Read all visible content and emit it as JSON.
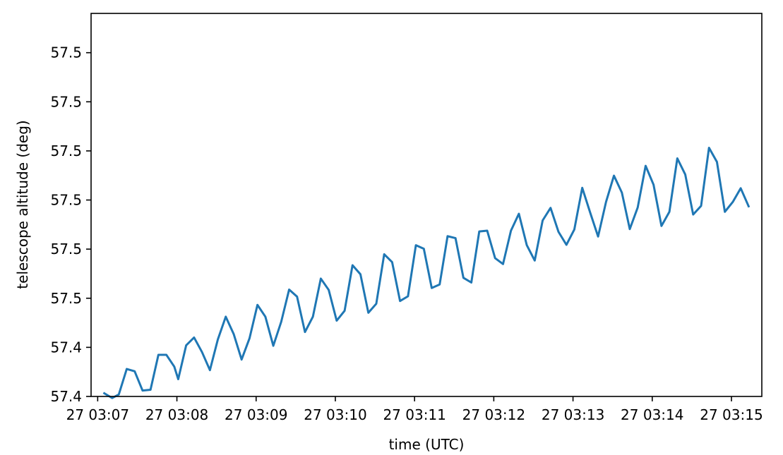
{
  "chart_data": {
    "type": "line",
    "title": "",
    "xlabel": "time (UTC)",
    "ylabel": "telescope altitude (deg)",
    "grid": false,
    "legend": "none",
    "line_color": "#1f77b4",
    "x_tick_labels": [
      "27 03:07",
      "27 03:08",
      "27 03:09",
      "27 03:10",
      "27 03:11",
      "27 03:12",
      "27 03:13",
      "27 03:14",
      "27 03:15"
    ],
    "y_tick_labels": [
      "57.4",
      "57.4",
      "57.5",
      "57.5",
      "57.5",
      "57.5",
      "57.5",
      "57.5"
    ],
    "xlim": [
      "2024-01-27T03:06:55",
      "2024-01-27T03:15:23"
    ],
    "ylim": [
      57.39,
      57.4875
    ],
    "x": [
      "2024-01-27T03:07:05",
      "2024-01-27T03:07:11",
      "2024-01-27T03:07:16",
      "2024-01-27T03:07:22",
      "2024-01-27T03:07:28",
      "2024-01-27T03:07:34",
      "2024-01-27T03:07:40",
      "2024-01-27T03:07:46",
      "2024-01-27T03:07:52",
      "2024-01-27T03:07:58",
      "2024-01-27T03:08:01",
      "2024-01-27T03:08:07",
      "2024-01-27T03:08:13",
      "2024-01-27T03:08:19",
      "2024-01-27T03:08:25",
      "2024-01-27T03:08:31",
      "2024-01-27T03:08:37",
      "2024-01-27T03:08:43",
      "2024-01-27T03:08:49",
      "2024-01-27T03:08:55",
      "2024-01-27T03:09:01",
      "2024-01-27T03:09:07",
      "2024-01-27T03:09:13",
      "2024-01-27T03:09:19",
      "2024-01-27T03:09:25",
      "2024-01-27T03:09:31",
      "2024-01-27T03:09:37",
      "2024-01-27T03:09:43",
      "2024-01-27T03:09:49",
      "2024-01-27T03:09:55",
      "2024-01-27T03:10:01",
      "2024-01-27T03:10:07",
      "2024-01-27T03:10:13",
      "2024-01-27T03:10:19",
      "2024-01-27T03:10:25",
      "2024-01-27T03:10:31",
      "2024-01-27T03:10:37",
      "2024-01-27T03:10:43",
      "2024-01-27T03:10:49",
      "2024-01-27T03:10:55",
      "2024-01-27T03:11:01",
      "2024-01-27T03:11:07",
      "2024-01-27T03:11:13",
      "2024-01-27T03:11:19",
      "2024-01-27T03:11:25",
      "2024-01-27T03:11:31",
      "2024-01-27T03:11:37",
      "2024-01-27T03:11:43",
      "2024-01-27T03:11:49",
      "2024-01-27T03:11:55",
      "2024-01-27T03:12:01",
      "2024-01-27T03:12:07",
      "2024-01-27T03:12:13",
      "2024-01-27T03:12:19",
      "2024-01-27T03:12:25",
      "2024-01-27T03:12:31",
      "2024-01-27T03:12:37",
      "2024-01-27T03:12:43",
      "2024-01-27T03:12:49",
      "2024-01-27T03:12:55",
      "2024-01-27T03:13:01",
      "2024-01-27T03:13:07",
      "2024-01-27T03:13:13",
      "2024-01-27T03:13:19",
      "2024-01-27T03:13:25",
      "2024-01-27T03:13:31",
      "2024-01-27T03:13:37",
      "2024-01-27T03:13:43",
      "2024-01-27T03:13:49",
      "2024-01-27T03:13:55",
      "2024-01-27T03:14:01",
      "2024-01-27T03:14:07",
      "2024-01-27T03:14:13",
      "2024-01-27T03:14:19",
      "2024-01-27T03:14:25",
      "2024-01-27T03:14:31",
      "2024-01-27T03:14:37",
      "2024-01-27T03:14:43",
      "2024-01-27T03:14:49",
      "2024-01-27T03:14:55",
      "2024-01-27T03:15:01",
      "2024-01-27T03:15:07",
      "2024-01-27T03:15:13"
    ],
    "y": [
      57.3908,
      57.3896,
      57.3905,
      57.397,
      57.3964,
      57.3915,
      57.3917,
      57.4006,
      57.4006,
      57.3976,
      57.3944,
      57.403,
      57.405,
      57.4013,
      57.3967,
      57.4045,
      57.4103,
      57.4059,
      57.3994,
      57.4048,
      57.4133,
      57.4103,
      57.4029,
      57.409,
      57.4172,
      57.4154,
      57.4064,
      57.4103,
      57.42,
      57.4171,
      57.4093,
      57.4118,
      57.4234,
      57.4211,
      57.4113,
      57.4136,
      57.4262,
      57.4242,
      57.4143,
      57.4155,
      57.4285,
      57.4276,
      57.4176,
      57.4185,
      57.4308,
      57.4303,
      57.4202,
      57.419,
      57.432,
      57.4322,
      57.4252,
      57.4237,
      57.4322,
      57.4365,
      57.4285,
      57.4246,
      57.4348,
      57.438,
      57.4319,
      57.4286,
      57.4325,
      57.4431,
      57.4368,
      57.4307,
      57.4395,
      57.4462,
      57.4419,
      57.4326,
      57.4381,
      57.4487,
      57.4439,
      57.4334,
      57.437,
      57.4506,
      57.4465,
      57.4363,
      57.4385,
      57.4533,
      57.4497,
      57.437,
      57.4395,
      57.443,
      57.4384
    ]
  }
}
